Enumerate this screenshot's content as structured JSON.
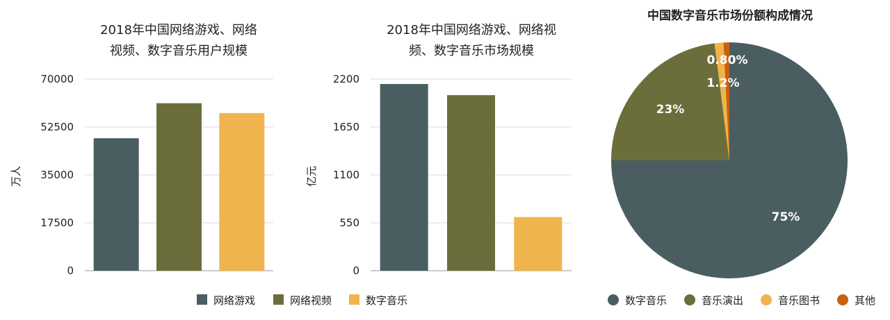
{
  "chart_data": [
    {
      "type": "bar",
      "title_lines": [
        "2018年中国网络游戏、网络",
        "视频、数字音乐用户规模"
      ],
      "ylabel": "万人",
      "xlabel": "",
      "ylim": [
        0,
        70000
      ],
      "yticks": [
        "0",
        "17500",
        "35000",
        "52500",
        "70000"
      ],
      "categories": [
        "网络游戏",
        "网络视频",
        "数字音乐"
      ],
      "values": [
        48400,
        61200,
        57600
      ],
      "colors": [
        "#4a5e61",
        "#6b6e3a",
        "#f0b44e"
      ],
      "grid": true
    },
    {
      "type": "bar",
      "title_lines": [
        "2018年中国网络游戏、网络视",
        "频、数字音乐市场规模"
      ],
      "ylabel": "亿元",
      "xlabel": "",
      "ylim": [
        0,
        2200
      ],
      "yticks": [
        "0",
        "550",
        "1100",
        "1650",
        "2200"
      ],
      "categories": [
        "网络游戏",
        "网络视频",
        "数字音乐"
      ],
      "values": [
        2144,
        2016,
        616
      ],
      "colors": [
        "#4a5e61",
        "#6b6e3a",
        "#f0b44e"
      ],
      "grid": true
    },
    {
      "type": "pie",
      "title": "中国数字音乐市场份额构成情况",
      "slices": [
        {
          "name": "数字音乐",
          "value": 75,
          "label": "75%",
          "color": "#4a5e61"
        },
        {
          "name": "音乐演出",
          "value": 23,
          "label": "23%",
          "color": "#6b6e3a"
        },
        {
          "name": "音乐图书",
          "value": 1.2,
          "label": "1.2%",
          "color": "#f0b44e"
        },
        {
          "name": "其他",
          "value": 0.8,
          "label": "0.80%",
          "color": "#c8600f"
        }
      ],
      "legend_position": "bottom"
    }
  ],
  "legends": {
    "bars": [
      {
        "name": "网络游戏",
        "color": "#4a5e61"
      },
      {
        "name": "网络视频",
        "color": "#6b6e3a"
      },
      {
        "name": "数字音乐",
        "color": "#f0b44e"
      }
    ],
    "pie": [
      {
        "name": "数字音乐",
        "color": "#4a5e61"
      },
      {
        "name": "音乐演出",
        "color": "#6b6e3a"
      },
      {
        "name": "音乐图书",
        "color": "#f0b44e"
      },
      {
        "name": "其他",
        "color": "#c8600f"
      }
    ]
  }
}
